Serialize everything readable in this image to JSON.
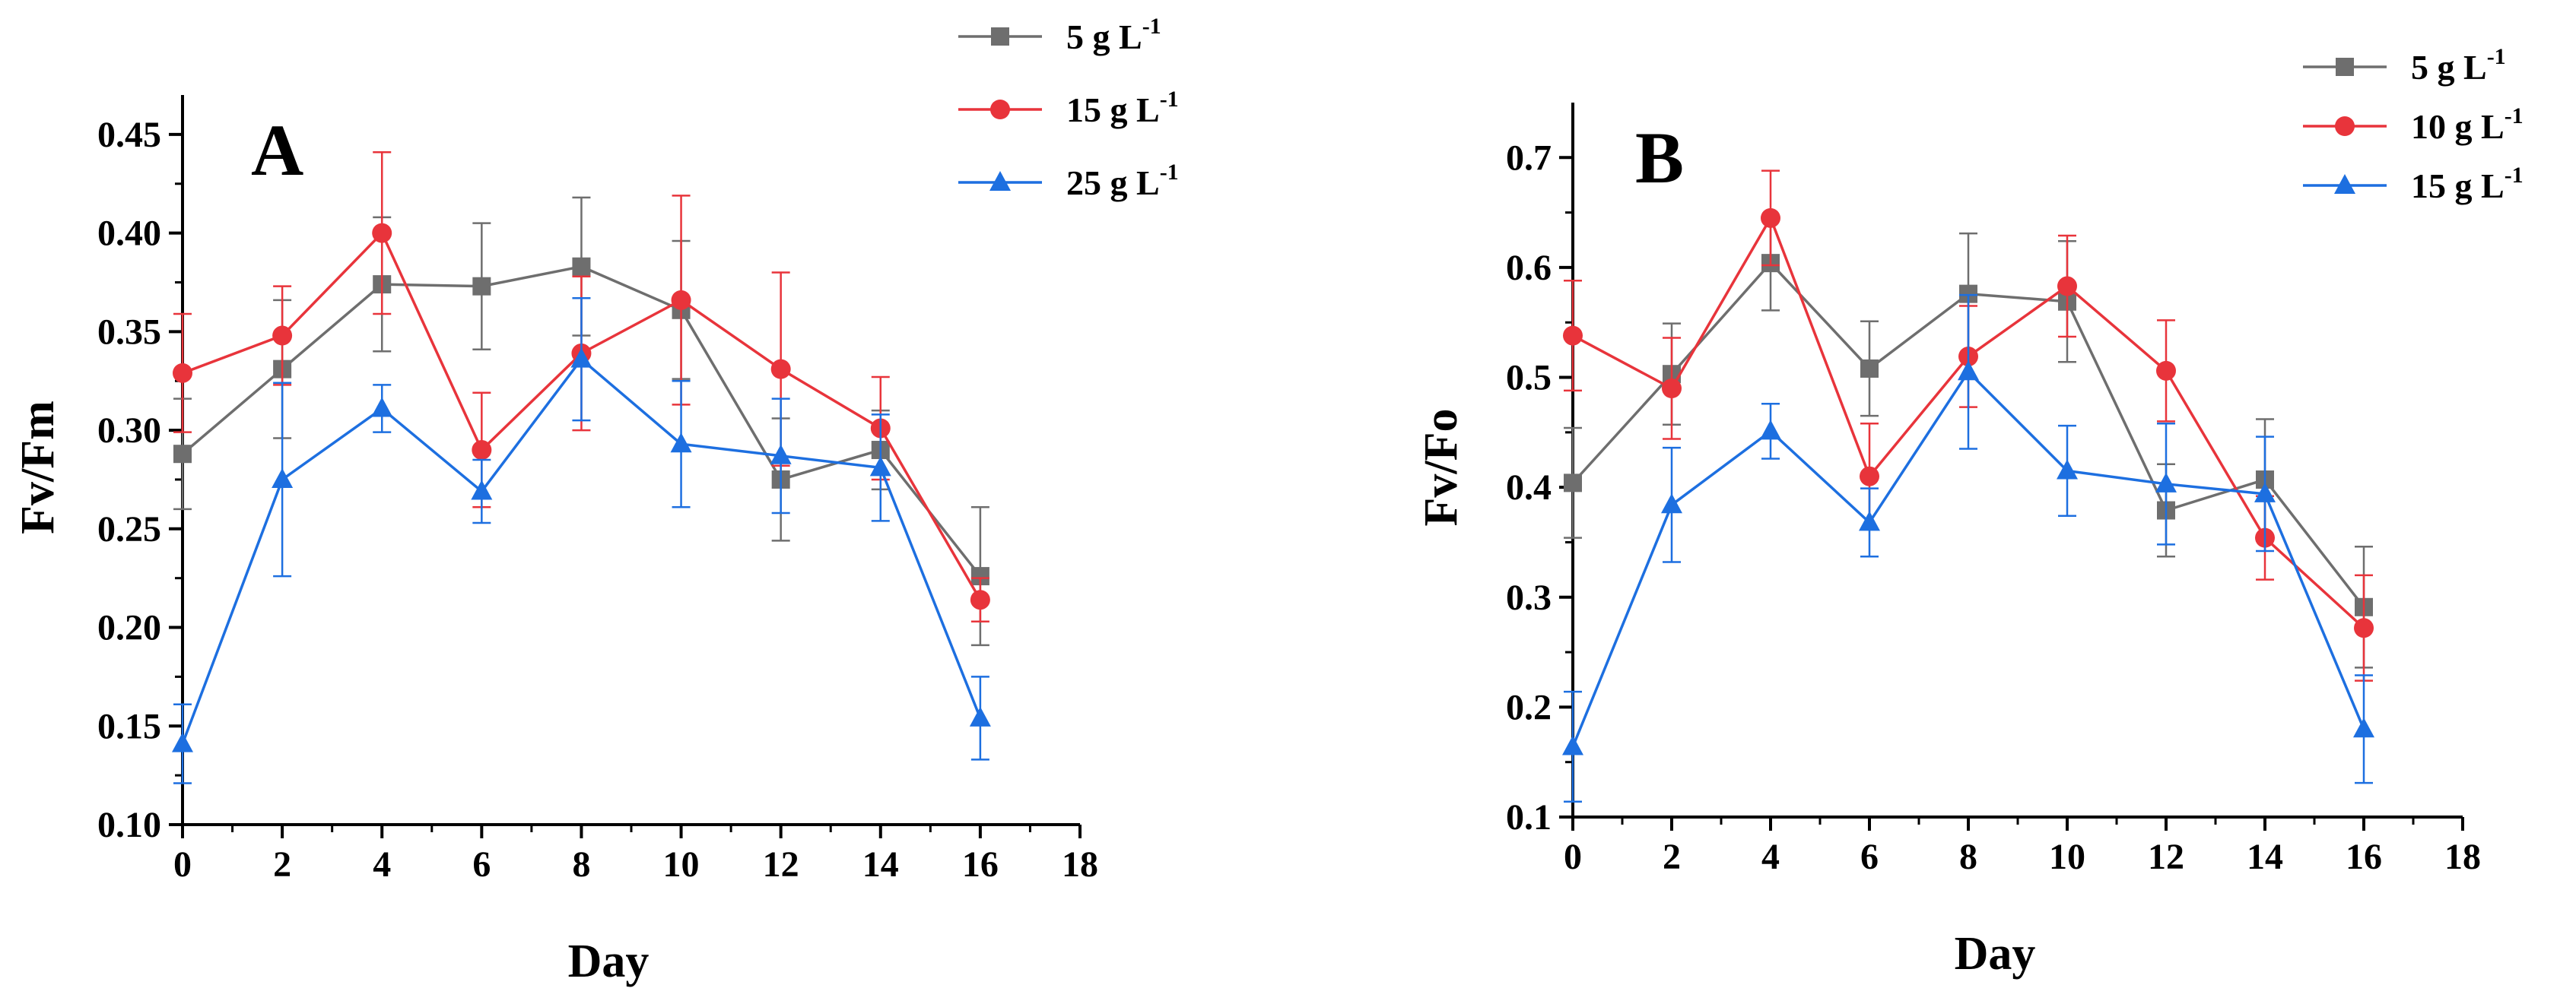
{
  "chart_data": [
    {
      "type": "line",
      "panel_label": "A",
      "title": "",
      "xlabel": "Day",
      "ylabel": "Fv/Fm",
      "xlim": [
        0,
        18
      ],
      "ylim": [
        0.1,
        0.47
      ],
      "xticks": [
        "0",
        "2",
        "4",
        "6",
        "8",
        "10",
        "12",
        "14",
        "16",
        "18"
      ],
      "yticks": [
        "0.10",
        "0.15",
        "0.20",
        "0.25",
        "0.30",
        "0.35",
        "0.40",
        "0.45"
      ],
      "x": [
        0,
        2,
        4,
        6,
        8,
        10,
        12,
        14,
        16
      ],
      "legend_position": "top-right",
      "series": [
        {
          "name": "5 g L",
          "sup": "-1",
          "color": "#6e6e6e",
          "marker": "square",
          "values": [
            0.288,
            0.331,
            0.374,
            0.373,
            0.383,
            0.361,
            0.275,
            0.29,
            0.226
          ],
          "errors": [
            0.028,
            0.035,
            0.034,
            0.032,
            0.035,
            0.035,
            0.031,
            0.02,
            0.035
          ]
        },
        {
          "name": "15 g L",
          "sup": "-1",
          "color": "#e8343b",
          "marker": "circle",
          "values": [
            0.329,
            0.348,
            0.4,
            0.29,
            0.339,
            0.366,
            0.331,
            0.301,
            0.214
          ],
          "errors": [
            0.03,
            0.025,
            0.041,
            0.029,
            0.039,
            0.053,
            0.049,
            0.026,
            0.011
          ]
        },
        {
          "name": "25 g L",
          "sup": "-1",
          "color": "#1d6fe0",
          "marker": "triangle",
          "values": [
            0.141,
            0.275,
            0.311,
            0.269,
            0.336,
            0.293,
            0.287,
            0.281,
            0.154
          ],
          "errors": [
            0.02,
            0.049,
            0.012,
            0.016,
            0.031,
            0.032,
            0.029,
            0.027,
            0.021
          ]
        }
      ]
    },
    {
      "type": "line",
      "panel_label": "B",
      "title": "",
      "xlabel": "Day",
      "ylabel": "Fv/Fo",
      "xlim": [
        0,
        18
      ],
      "ylim": [
        0.1,
        0.75
      ],
      "xticks": [
        "0",
        "2",
        "4",
        "6",
        "8",
        "10",
        "12",
        "14",
        "16",
        "18"
      ],
      "yticks": [
        "0.1",
        "0.2",
        "0.3",
        "0.4",
        "0.5",
        "0.6",
        "0.7"
      ],
      "x": [
        0,
        2,
        4,
        6,
        8,
        10,
        12,
        14,
        16
      ],
      "legend_position": "top-right",
      "series": [
        {
          "name": "5 g L",
          "sup": "-1",
          "color": "#6e6e6e",
          "marker": "square",
          "values": [
            0.404,
            0.503,
            0.604,
            0.508,
            0.576,
            0.569,
            0.379,
            0.407,
            0.291
          ],
          "errors": [
            0.05,
            0.046,
            0.043,
            0.043,
            0.055,
            0.055,
            0.042,
            0.055,
            0.055
          ]
        },
        {
          "name": "10 g L",
          "sup": "-1",
          "color": "#e8343b",
          "marker": "circle",
          "values": [
            0.538,
            0.49,
            0.645,
            0.41,
            0.519,
            0.583,
            0.506,
            0.354,
            0.272
          ],
          "errors": [
            0.05,
            0.046,
            0.043,
            0.048,
            0.046,
            0.046,
            0.046,
            0.038,
            0.048
          ]
        },
        {
          "name": "15 g L",
          "sup": "-1",
          "color": "#1d6fe0",
          "marker": "triangle",
          "values": [
            0.164,
            0.384,
            0.451,
            0.368,
            0.505,
            0.415,
            0.403,
            0.394,
            0.18
          ],
          "errors": [
            0.05,
            0.052,
            0.025,
            0.031,
            0.07,
            0.041,
            0.055,
            0.052,
            0.049
          ]
        }
      ]
    }
  ]
}
